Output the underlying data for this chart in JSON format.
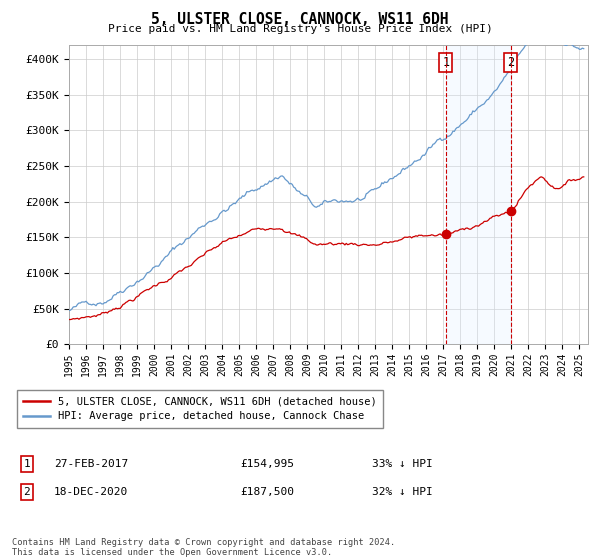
{
  "title": "5, ULSTER CLOSE, CANNOCK, WS11 6DH",
  "subtitle": "Price paid vs. HM Land Registry's House Price Index (HPI)",
  "ylabel_ticks": [
    "£0",
    "£50K",
    "£100K",
    "£150K",
    "£200K",
    "£250K",
    "£300K",
    "£350K",
    "£400K"
  ],
  "ylim": [
    0,
    420000
  ],
  "xlim_start": 1995.0,
  "xlim_end": 2025.5,
  "marker1_x": 2017.15,
  "marker1_y": 154995,
  "marker1_label": "1",
  "marker1_date": "27-FEB-2017",
  "marker1_price": "£154,995",
  "marker1_hpi": "33% ↓ HPI",
  "marker2_x": 2020.96,
  "marker2_y": 187500,
  "marker2_label": "2",
  "marker2_date": "18-DEC-2020",
  "marker2_price": "£187,500",
  "marker2_hpi": "32% ↓ HPI",
  "red_line_color": "#cc0000",
  "blue_line_color": "#6699cc",
  "blue_fill_color": "#ddeeff",
  "grid_color": "#cccccc",
  "bg_color": "#ffffff",
  "legend_label_red": "5, ULSTER CLOSE, CANNOCK, WS11 6DH (detached house)",
  "legend_label_blue": "HPI: Average price, detached house, Cannock Chase",
  "footnote": "Contains HM Land Registry data © Crown copyright and database right 2024.\nThis data is licensed under the Open Government Licence v3.0."
}
